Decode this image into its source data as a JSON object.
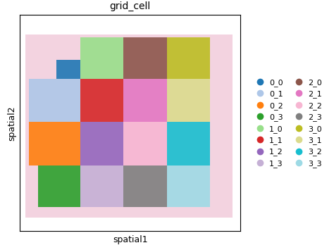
{
  "chart_data": {
    "type": "spatial_grid",
    "title": "grid_cell",
    "x_label": "spatial1",
    "y_label": "spatial2",
    "xlim": [
      0,
      320
    ],
    "ylim": [
      313,
      0
    ],
    "tick_labels": false,
    "legend": "right",
    "cells": [
      {
        "name": "0_0",
        "color": "#1f77b4",
        "x": [
          53,
          88
        ],
        "y": [
          65,
          92
        ]
      },
      {
        "name": "0_1",
        "color": "#aec7e8",
        "x": [
          13,
          88
        ],
        "y": [
          92,
          155
        ]
      },
      {
        "name": "0_2",
        "color": "#ff7f0e",
        "x": [
          13,
          88
        ],
        "y": [
          155,
          218
        ]
      },
      {
        "name": "0_3",
        "color": "#2ca02c",
        "x": [
          26,
          88
        ],
        "y": [
          218,
          278
        ]
      },
      {
        "name": "1_0",
        "color": "#98df8a",
        "x": [
          88,
          150
        ],
        "y": [
          32,
          92
        ]
      },
      {
        "name": "1_1",
        "color": "#d62728",
        "x": [
          88,
          150
        ],
        "y": [
          92,
          155
        ]
      },
      {
        "name": "1_2",
        "color": "#9467bd",
        "x": [
          88,
          150
        ],
        "y": [
          155,
          218
        ]
      },
      {
        "name": "1_3",
        "color": "#c5b0d5",
        "x": [
          88,
          150
        ],
        "y": [
          218,
          278
        ]
      },
      {
        "name": "2_0",
        "color": "#8c564b",
        "x": [
          150,
          213
        ],
        "y": [
          32,
          92
        ]
      },
      {
        "name": "2_1",
        "color": "#e377c2",
        "x": [
          150,
          213
        ],
        "y": [
          92,
          155
        ]
      },
      {
        "name": "2_2",
        "color": "#f7b6d2",
        "x": [
          150,
          213
        ],
        "y": [
          155,
          218
        ]
      },
      {
        "name": "2_3",
        "color": "#7f7f7f",
        "x": [
          150,
          213
        ],
        "y": [
          218,
          278
        ]
      },
      {
        "name": "3_0",
        "color": "#bcbd22",
        "x": [
          213,
          276
        ],
        "y": [
          32,
          92
        ]
      },
      {
        "name": "3_1",
        "color": "#dbdb8d",
        "x": [
          213,
          276
        ],
        "y": [
          92,
          155
        ]
      },
      {
        "name": "3_2",
        "color": "#17becf",
        "x": [
          213,
          276
        ],
        "y": [
          155,
          218
        ]
      },
      {
        "name": "3_3",
        "color": "#9edae5",
        "x": [
          213,
          276
        ],
        "y": [
          218,
          278
        ]
      }
    ]
  }
}
